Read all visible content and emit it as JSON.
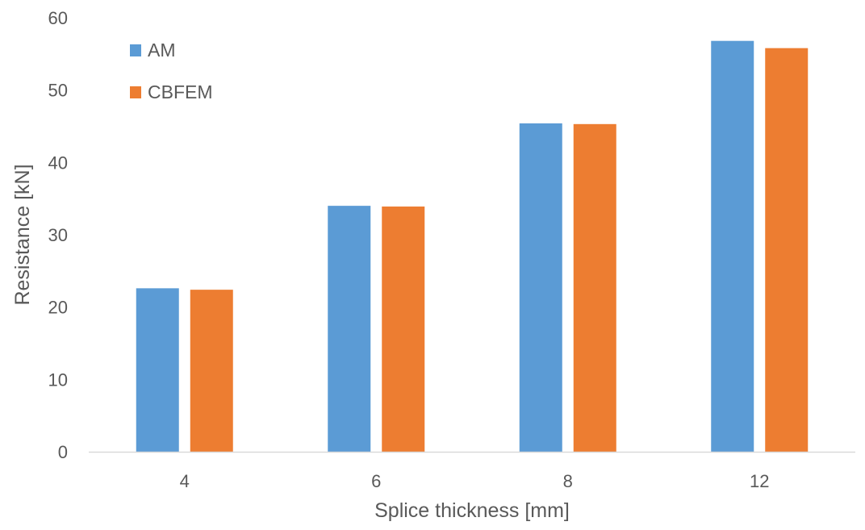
{
  "chart_data": {
    "type": "bar",
    "title": "",
    "xlabel": "Splice thickness [mm]",
    "ylabel": "Resistance [kN]",
    "categories": [
      "4",
      "6",
      "8",
      "12"
    ],
    "series": [
      {
        "name": "AM",
        "color": "#5B9BD5",
        "values": [
          22.6,
          34.0,
          45.4,
          56.8
        ]
      },
      {
        "name": "CBFEM",
        "color": "#ED7D31",
        "values": [
          22.4,
          33.9,
          45.3,
          55.8
        ]
      }
    ],
    "ylim": [
      0,
      60
    ],
    "yticks": [
      "0",
      "10",
      "20",
      "30",
      "40",
      "50",
      "60"
    ],
    "grid": false,
    "legend_position": "top-left"
  }
}
